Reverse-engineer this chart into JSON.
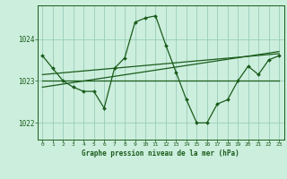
{
  "title": "Graphe pression niveau de la mer (hPa)",
  "background_color": "#cceedd",
  "grid_color": "#99ccbb",
  "line_color": "#1a5c1a",
  "xlim": [
    -0.5,
    23.5
  ],
  "ylim": [
    1021.6,
    1024.8
  ],
  "yticks": [
    1022,
    1023,
    1024
  ],
  "xticks": [
    0,
    1,
    2,
    3,
    4,
    5,
    6,
    7,
    8,
    9,
    10,
    11,
    12,
    13,
    14,
    15,
    16,
    17,
    18,
    19,
    20,
    21,
    22,
    23
  ],
  "series1_x": [
    0,
    1,
    2,
    3,
    4,
    5,
    6,
    7,
    8,
    9,
    10,
    11,
    12,
    13,
    14,
    15,
    16,
    17,
    18,
    19,
    20,
    21,
    22,
    23
  ],
  "series1_y": [
    1023.6,
    1023.3,
    1023.0,
    1022.85,
    1022.75,
    1022.75,
    1022.35,
    1023.3,
    1023.55,
    1024.4,
    1024.5,
    1024.55,
    1023.85,
    1023.2,
    1022.55,
    1022.0,
    1022.0,
    1022.45,
    1022.55,
    1023.0,
    1023.35,
    1023.15,
    1023.5,
    1023.6
  ],
  "series2_y": [
    1023.0,
    1023.0
  ],
  "series2_x": [
    0,
    23
  ],
  "series3_x": [
    0,
    23
  ],
  "series3_y": [
    1022.85,
    1023.7
  ],
  "series4_x": [
    0,
    23
  ],
  "series4_y": [
    1023.15,
    1023.65
  ]
}
